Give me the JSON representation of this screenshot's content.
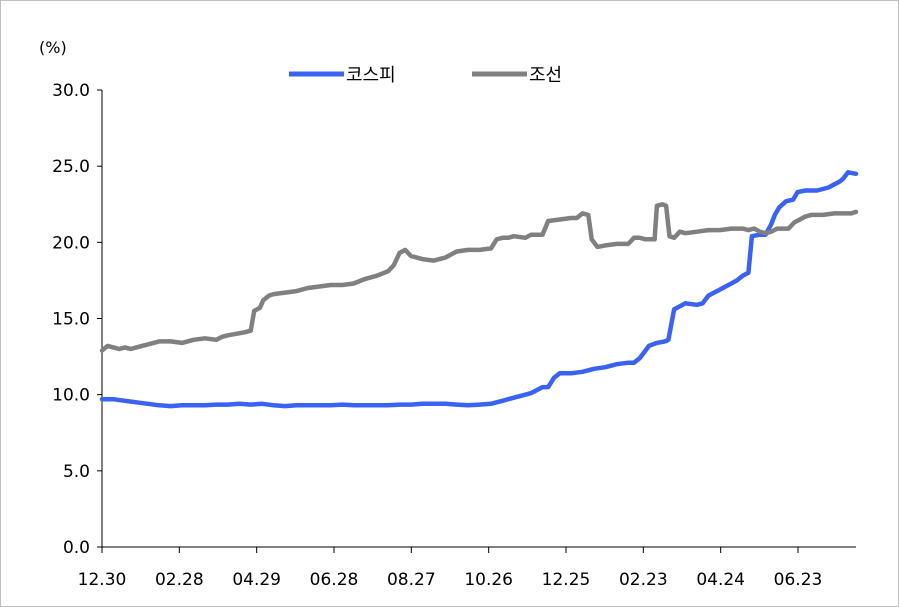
{
  "chart_data": {
    "type": "line",
    "unit_label": "(%)",
    "ylim": [
      0,
      30
    ],
    "y_ticks": [
      "0.0",
      "5.0",
      "10.0",
      "15.0",
      "20.0",
      "25.0",
      "30.0"
    ],
    "x_ticks": [
      "12.30",
      "02.28",
      "04.29",
      "06.28",
      "08.27",
      "10.26",
      "12.25",
      "02.23",
      "04.24",
      "06.23"
    ],
    "grid": false,
    "legend_position": "top-center",
    "series": [
      {
        "name": "코스피",
        "color": "#3A63F3",
        "points": [
          [
            0,
            9.7
          ],
          [
            10,
            9.7
          ],
          [
            20,
            9.6
          ],
          [
            30,
            9.5
          ],
          [
            40,
            9.4
          ],
          [
            50,
            9.3
          ],
          [
            60,
            9.25
          ],
          [
            70,
            9.3
          ],
          [
            90,
            9.3
          ],
          [
            100,
            9.35
          ],
          [
            110,
            9.35
          ],
          [
            120,
            9.4
          ],
          [
            130,
            9.35
          ],
          [
            140,
            9.4
          ],
          [
            150,
            9.3
          ],
          [
            160,
            9.25
          ],
          [
            170,
            9.3
          ],
          [
            180,
            9.3
          ],
          [
            190,
            9.3
          ],
          [
            200,
            9.3
          ],
          [
            210,
            9.35
          ],
          [
            220,
            9.3
          ],
          [
            230,
            9.3
          ],
          [
            240,
            9.3
          ],
          [
            250,
            9.3
          ],
          [
            260,
            9.35
          ],
          [
            270,
            9.35
          ],
          [
            280,
            9.4
          ],
          [
            290,
            9.4
          ],
          [
            300,
            9.4
          ],
          [
            310,
            9.35
          ],
          [
            320,
            9.3
          ],
          [
            330,
            9.35
          ],
          [
            340,
            9.4
          ],
          [
            345,
            9.5
          ],
          [
            350,
            9.6
          ],
          [
            355,
            9.7
          ],
          [
            360,
            9.8
          ],
          [
            365,
            9.9
          ],
          [
            370,
            10.0
          ],
          [
            375,
            10.1
          ],
          [
            380,
            10.3
          ],
          [
            385,
            10.5
          ],
          [
            390,
            10.5
          ],
          [
            395,
            11.1
          ],
          [
            400,
            11.4
          ],
          [
            410,
            11.4
          ],
          [
            420,
            11.5
          ],
          [
            430,
            11.7
          ],
          [
            440,
            11.8
          ],
          [
            450,
            12.0
          ],
          [
            460,
            12.1
          ],
          [
            465,
            12.1
          ],
          [
            470,
            12.4
          ],
          [
            475,
            12.9
          ],
          [
            478,
            13.2
          ],
          [
            485,
            13.4
          ],
          [
            492,
            13.5
          ],
          [
            495,
            13.6
          ],
          [
            500,
            15.6
          ],
          [
            505,
            15.8
          ],
          [
            510,
            16.0
          ],
          [
            520,
            15.9
          ],
          [
            525,
            16.0
          ],
          [
            530,
            16.5
          ],
          [
            535,
            16.7
          ],
          [
            540,
            16.9
          ],
          [
            545,
            17.1
          ],
          [
            550,
            17.3
          ],
          [
            555,
            17.5
          ],
          [
            560,
            17.8
          ],
          [
            565,
            18.0
          ],
          [
            568,
            20.4
          ],
          [
            575,
            20.5
          ],
          [
            580,
            20.5
          ],
          [
            585,
            21.2
          ],
          [
            588,
            21.8
          ],
          [
            592,
            22.3
          ],
          [
            598,
            22.7
          ],
          [
            604,
            22.8
          ],
          [
            608,
            23.3
          ],
          [
            615,
            23.4
          ],
          [
            625,
            23.4
          ],
          [
            630,
            23.5
          ],
          [
            635,
            23.6
          ],
          [
            640,
            23.8
          ],
          [
            645,
            24.0
          ],
          [
            648,
            24.2
          ],
          [
            652,
            24.6
          ],
          [
            659,
            24.5
          ]
        ]
      },
      {
        "name": "조선",
        "color": "#808080",
        "points": [
          [
            0,
            12.9
          ],
          [
            5,
            13.2
          ],
          [
            10,
            13.1
          ],
          [
            15,
            13.0
          ],
          [
            20,
            13.1
          ],
          [
            25,
            13.0
          ],
          [
            30,
            13.1
          ],
          [
            35,
            13.2
          ],
          [
            40,
            13.3
          ],
          [
            45,
            13.4
          ],
          [
            50,
            13.5
          ],
          [
            55,
            13.5
          ],
          [
            60,
            13.5
          ],
          [
            70,
            13.4
          ],
          [
            80,
            13.6
          ],
          [
            90,
            13.7
          ],
          [
            100,
            13.6
          ],
          [
            105,
            13.8
          ],
          [
            110,
            13.9
          ],
          [
            118,
            14.0
          ],
          [
            125,
            14.1
          ],
          [
            130,
            14.2
          ],
          [
            133,
            15.5
          ],
          [
            138,
            15.7
          ],
          [
            141,
            16.2
          ],
          [
            146,
            16.5
          ],
          [
            150,
            16.6
          ],
          [
            160,
            16.7
          ],
          [
            170,
            16.8
          ],
          [
            180,
            17.0
          ],
          [
            190,
            17.1
          ],
          [
            200,
            17.2
          ],
          [
            210,
            17.2
          ],
          [
            220,
            17.3
          ],
          [
            230,
            17.6
          ],
          [
            240,
            17.8
          ],
          [
            250,
            18.1
          ],
          [
            255,
            18.5
          ],
          [
            260,
            19.3
          ],
          [
            265,
            19.5
          ],
          [
            270,
            19.1
          ],
          [
            280,
            18.9
          ],
          [
            290,
            18.8
          ],
          [
            300,
            19.0
          ],
          [
            305,
            19.2
          ],
          [
            310,
            19.4
          ],
          [
            320,
            19.5
          ],
          [
            330,
            19.5
          ],
          [
            340,
            19.6
          ],
          [
            345,
            20.2
          ],
          [
            350,
            20.3
          ],
          [
            355,
            20.3
          ],
          [
            360,
            20.4
          ],
          [
            370,
            20.3
          ],
          [
            375,
            20.5
          ],
          [
            385,
            20.5
          ],
          [
            390,
            21.4
          ],
          [
            400,
            21.5
          ],
          [
            410,
            21.6
          ],
          [
            415,
            21.6
          ],
          [
            420,
            21.9
          ],
          [
            425,
            21.8
          ],
          [
            428,
            20.2
          ],
          [
            433,
            19.7
          ],
          [
            440,
            19.8
          ],
          [
            450,
            19.9
          ],
          [
            460,
            19.9
          ],
          [
            465,
            20.3
          ],
          [
            470,
            20.3
          ],
          [
            475,
            20.2
          ],
          [
            480,
            20.2
          ],
          [
            483,
            20.2
          ],
          [
            485,
            22.4
          ],
          [
            490,
            22.5
          ],
          [
            493,
            22.4
          ],
          [
            496,
            20.4
          ],
          [
            500,
            20.3
          ],
          [
            505,
            20.7
          ],
          [
            510,
            20.6
          ],
          [
            520,
            20.7
          ],
          [
            530,
            20.8
          ],
          [
            540,
            20.8
          ],
          [
            550,
            20.9
          ],
          [
            560,
            20.9
          ],
          [
            565,
            20.8
          ],
          [
            570,
            20.9
          ],
          [
            575,
            20.7
          ],
          [
            580,
            20.6
          ],
          [
            585,
            20.7
          ],
          [
            590,
            20.9
          ],
          [
            600,
            20.9
          ],
          [
            605,
            21.3
          ],
          [
            610,
            21.5
          ],
          [
            615,
            21.7
          ],
          [
            620,
            21.8
          ],
          [
            630,
            21.8
          ],
          [
            640,
            21.9
          ],
          [
            650,
            21.9
          ],
          [
            655,
            21.9
          ],
          [
            659,
            22.0
          ]
        ]
      }
    ]
  }
}
